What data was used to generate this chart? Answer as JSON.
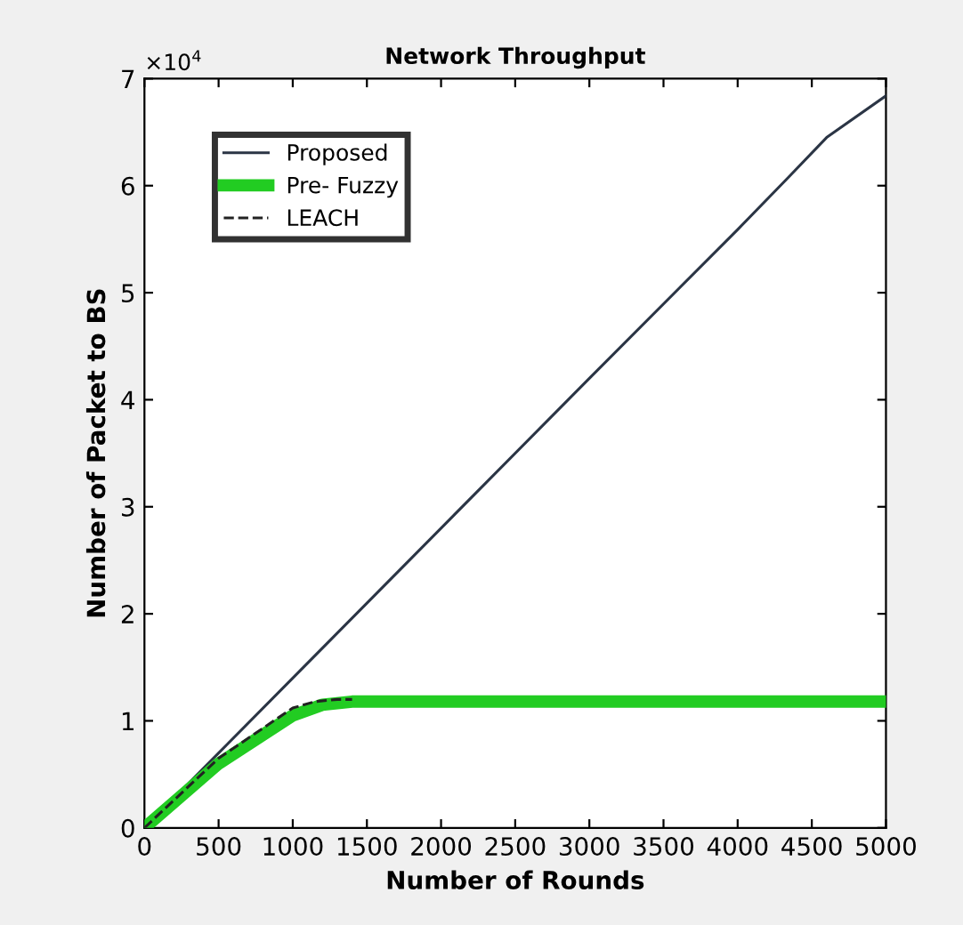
{
  "chart_data": {
    "type": "line",
    "title": "Network Throughput",
    "xlabel": "Number of Rounds",
    "ylabel": "Number of Packet to BS",
    "annotations": [
      "×10$^{4}$"
    ],
    "xlim": [
      0,
      5000
    ],
    "xticks": [
      0,
      500,
      1000,
      1500,
      2000,
      2500,
      3000,
      3500,
      4000,
      4500,
      5000
    ],
    "ylim": [
      0,
      7
    ],
    "yticks": [
      0,
      1,
      2,
      3,
      4,
      5,
      6,
      7
    ],
    "grid": false,
    "legend": "top left",
    "series": [
      {
        "name": "Proposed",
        "color": "#2b3545",
        "line_style": "solid",
        "x": [
          0,
          500,
          1000,
          2000,
          3000,
          4000,
          4330,
          4600,
          5000
        ],
        "values": [
          0,
          0.7,
          1.4,
          2.8,
          4.2,
          5.59,
          6.06,
          6.45,
          6.84
        ]
      },
      {
        "name": "Pre- Fuzzy",
        "color": "#22cc22",
        "line_style": "solid",
        "x": [
          0,
          500,
          1000,
          1200,
          1400,
          2000,
          3000,
          4000,
          5000
        ],
        "values": [
          0,
          0.6,
          1.05,
          1.15,
          1.18,
          1.18,
          1.18,
          1.18,
          1.18
        ]
      },
      {
        "name": "LEACH",
        "color": "#222222",
        "line_style": "dashed",
        "x": [
          0,
          500,
          1000,
          1150,
          1300,
          1400
        ],
        "values": [
          0,
          0.65,
          1.12,
          1.18,
          1.2,
          1.2
        ]
      }
    ]
  }
}
